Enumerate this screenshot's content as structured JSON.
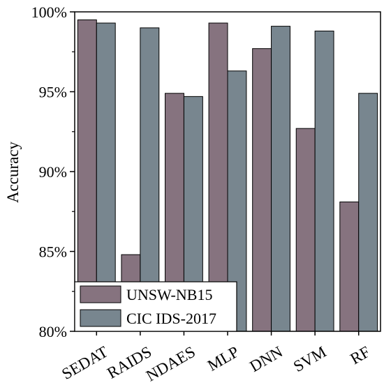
{
  "chart_data": {
    "type": "bar",
    "categories": [
      "SEDAT",
      "RAIDS",
      "NDAES",
      "MLP",
      "DNN",
      "SVM",
      "RF"
    ],
    "series": [
      {
        "name": "UNSW-NB15",
        "color": "#86737f",
        "values": [
          99.5,
          84.8,
          94.9,
          99.3,
          97.7,
          92.7,
          88.1
        ]
      },
      {
        "name": "CIC IDS-2017",
        "color": "#78868f",
        "values": [
          99.3,
          99.0,
          94.7,
          96.3,
          99.1,
          98.8,
          94.9
        ]
      }
    ],
    "title": "",
    "xlabel": "",
    "ylabel": "Accuracy",
    "ylim": [
      80,
      100
    ],
    "yticks": [
      80,
      85,
      90,
      95,
      100
    ],
    "ytick_labels": [
      "80%",
      "85%",
      "90%",
      "95%",
      "100%"
    ],
    "legend_position": "bottom-left",
    "grid": false
  }
}
